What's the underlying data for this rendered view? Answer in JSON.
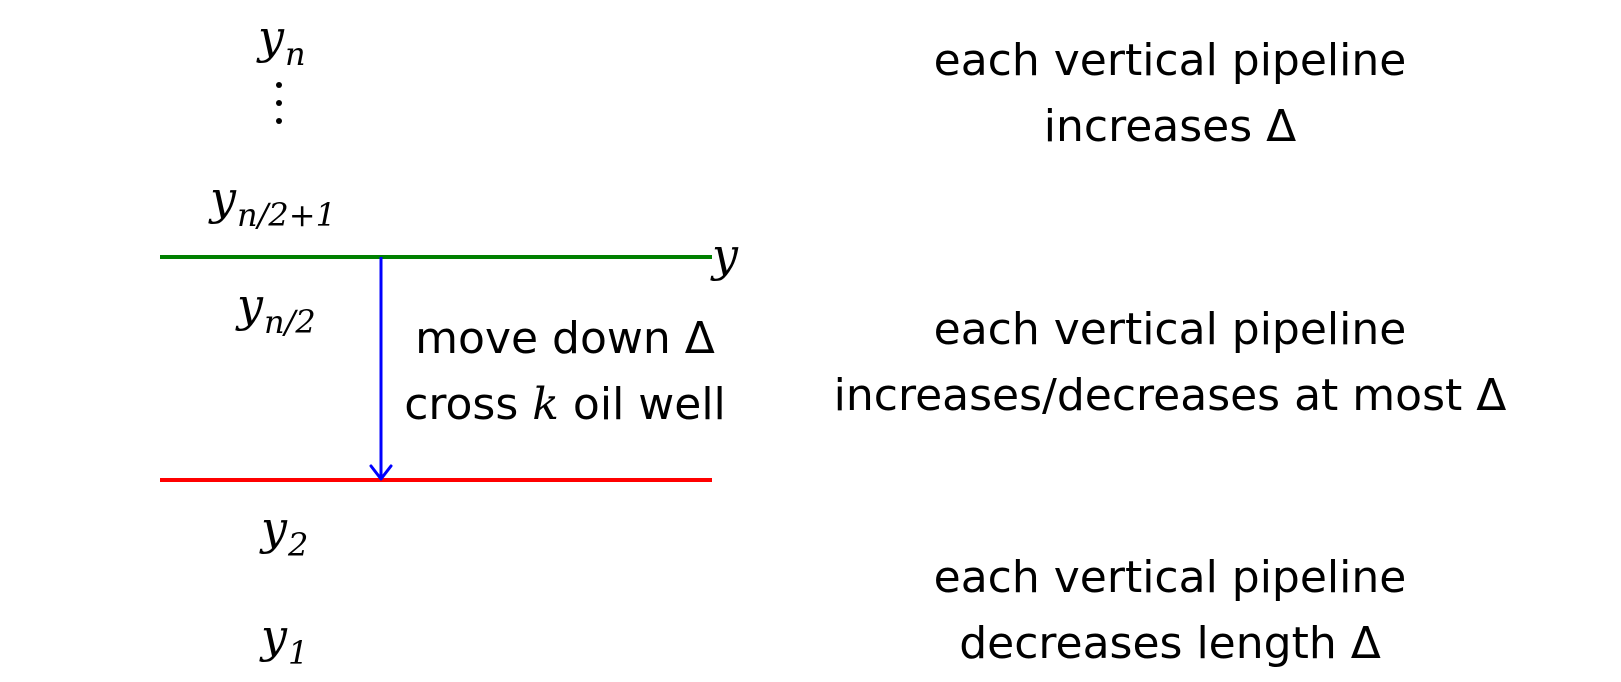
{
  "labels": {
    "y_n": {
      "base": "y",
      "sub": "n"
    },
    "vdots": "⋮",
    "y_n2p1": {
      "base": "y",
      "sub": "n/2+1"
    },
    "y_line": "y",
    "y_n2": {
      "base": "y",
      "sub": "n/2"
    },
    "y_2": {
      "base": "y",
      "sub": "2"
    },
    "y_1": {
      "base": "y",
      "sub": "1"
    }
  },
  "arrow_text": {
    "line1": "move down Δ",
    "line2_pre": "cross ",
    "line2_var": "k",
    "line2_post": " oil well"
  },
  "descriptions": {
    "top": {
      "line1": "each vertical pipeline",
      "line2": "increases Δ"
    },
    "middle": {
      "line1": "each vertical pipeline",
      "line2": "increases/decreases at most Δ"
    },
    "bottom": {
      "line1": "each vertical pipeline",
      "line2": "decreases length Δ"
    }
  },
  "colors": {
    "green_line": "#008000",
    "red_line": "#ff0000",
    "arrow": "#0000ff"
  }
}
